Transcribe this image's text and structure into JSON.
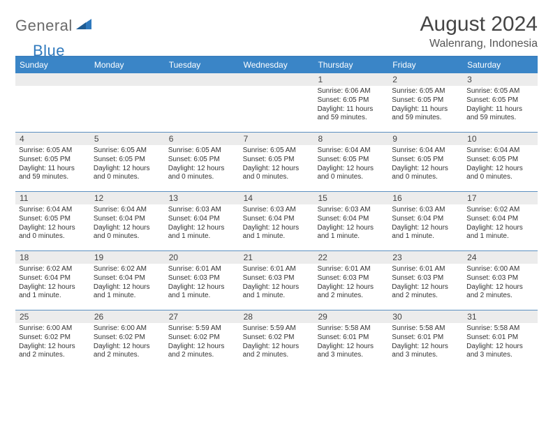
{
  "brand": {
    "part1": "General",
    "part2": "Blue"
  },
  "title": {
    "month": "August 2024",
    "location": "Walenrang, Indonesia"
  },
  "colors": {
    "header_bg": "#3a85c7",
    "header_border": "#3a7fbf",
    "week_divider": "#5b8fc0",
    "daynum_bg": "#ececec",
    "text": "#333333",
    "logo_gray": "#6a6a6a",
    "logo_blue": "#2f79bd",
    "background": "#ffffff"
  },
  "dayHeaders": [
    "Sunday",
    "Monday",
    "Tuesday",
    "Wednesday",
    "Thursday",
    "Friday",
    "Saturday"
  ],
  "weeks": [
    [
      {
        "n": "",
        "sr": "",
        "ss": "",
        "dl": ""
      },
      {
        "n": "",
        "sr": "",
        "ss": "",
        "dl": ""
      },
      {
        "n": "",
        "sr": "",
        "ss": "",
        "dl": ""
      },
      {
        "n": "",
        "sr": "",
        "ss": "",
        "dl": ""
      },
      {
        "n": "1",
        "sr": "Sunrise: 6:06 AM",
        "ss": "Sunset: 6:05 PM",
        "dl": "Daylight: 11 hours and 59 minutes."
      },
      {
        "n": "2",
        "sr": "Sunrise: 6:05 AM",
        "ss": "Sunset: 6:05 PM",
        "dl": "Daylight: 11 hours and 59 minutes."
      },
      {
        "n": "3",
        "sr": "Sunrise: 6:05 AM",
        "ss": "Sunset: 6:05 PM",
        "dl": "Daylight: 11 hours and 59 minutes."
      }
    ],
    [
      {
        "n": "4",
        "sr": "Sunrise: 6:05 AM",
        "ss": "Sunset: 6:05 PM",
        "dl": "Daylight: 11 hours and 59 minutes."
      },
      {
        "n": "5",
        "sr": "Sunrise: 6:05 AM",
        "ss": "Sunset: 6:05 PM",
        "dl": "Daylight: 12 hours and 0 minutes."
      },
      {
        "n": "6",
        "sr": "Sunrise: 6:05 AM",
        "ss": "Sunset: 6:05 PM",
        "dl": "Daylight: 12 hours and 0 minutes."
      },
      {
        "n": "7",
        "sr": "Sunrise: 6:05 AM",
        "ss": "Sunset: 6:05 PM",
        "dl": "Daylight: 12 hours and 0 minutes."
      },
      {
        "n": "8",
        "sr": "Sunrise: 6:04 AM",
        "ss": "Sunset: 6:05 PM",
        "dl": "Daylight: 12 hours and 0 minutes."
      },
      {
        "n": "9",
        "sr": "Sunrise: 6:04 AM",
        "ss": "Sunset: 6:05 PM",
        "dl": "Daylight: 12 hours and 0 minutes."
      },
      {
        "n": "10",
        "sr": "Sunrise: 6:04 AM",
        "ss": "Sunset: 6:05 PM",
        "dl": "Daylight: 12 hours and 0 minutes."
      }
    ],
    [
      {
        "n": "11",
        "sr": "Sunrise: 6:04 AM",
        "ss": "Sunset: 6:05 PM",
        "dl": "Daylight: 12 hours and 0 minutes."
      },
      {
        "n": "12",
        "sr": "Sunrise: 6:04 AM",
        "ss": "Sunset: 6:04 PM",
        "dl": "Daylight: 12 hours and 0 minutes."
      },
      {
        "n": "13",
        "sr": "Sunrise: 6:03 AM",
        "ss": "Sunset: 6:04 PM",
        "dl": "Daylight: 12 hours and 1 minute."
      },
      {
        "n": "14",
        "sr": "Sunrise: 6:03 AM",
        "ss": "Sunset: 6:04 PM",
        "dl": "Daylight: 12 hours and 1 minute."
      },
      {
        "n": "15",
        "sr": "Sunrise: 6:03 AM",
        "ss": "Sunset: 6:04 PM",
        "dl": "Daylight: 12 hours and 1 minute."
      },
      {
        "n": "16",
        "sr": "Sunrise: 6:03 AM",
        "ss": "Sunset: 6:04 PM",
        "dl": "Daylight: 12 hours and 1 minute."
      },
      {
        "n": "17",
        "sr": "Sunrise: 6:02 AM",
        "ss": "Sunset: 6:04 PM",
        "dl": "Daylight: 12 hours and 1 minute."
      }
    ],
    [
      {
        "n": "18",
        "sr": "Sunrise: 6:02 AM",
        "ss": "Sunset: 6:04 PM",
        "dl": "Daylight: 12 hours and 1 minute."
      },
      {
        "n": "19",
        "sr": "Sunrise: 6:02 AM",
        "ss": "Sunset: 6:04 PM",
        "dl": "Daylight: 12 hours and 1 minute."
      },
      {
        "n": "20",
        "sr": "Sunrise: 6:01 AM",
        "ss": "Sunset: 6:03 PM",
        "dl": "Daylight: 12 hours and 1 minute."
      },
      {
        "n": "21",
        "sr": "Sunrise: 6:01 AM",
        "ss": "Sunset: 6:03 PM",
        "dl": "Daylight: 12 hours and 1 minute."
      },
      {
        "n": "22",
        "sr": "Sunrise: 6:01 AM",
        "ss": "Sunset: 6:03 PM",
        "dl": "Daylight: 12 hours and 2 minutes."
      },
      {
        "n": "23",
        "sr": "Sunrise: 6:01 AM",
        "ss": "Sunset: 6:03 PM",
        "dl": "Daylight: 12 hours and 2 minutes."
      },
      {
        "n": "24",
        "sr": "Sunrise: 6:00 AM",
        "ss": "Sunset: 6:03 PM",
        "dl": "Daylight: 12 hours and 2 minutes."
      }
    ],
    [
      {
        "n": "25",
        "sr": "Sunrise: 6:00 AM",
        "ss": "Sunset: 6:02 PM",
        "dl": "Daylight: 12 hours and 2 minutes."
      },
      {
        "n": "26",
        "sr": "Sunrise: 6:00 AM",
        "ss": "Sunset: 6:02 PM",
        "dl": "Daylight: 12 hours and 2 minutes."
      },
      {
        "n": "27",
        "sr": "Sunrise: 5:59 AM",
        "ss": "Sunset: 6:02 PM",
        "dl": "Daylight: 12 hours and 2 minutes."
      },
      {
        "n": "28",
        "sr": "Sunrise: 5:59 AM",
        "ss": "Sunset: 6:02 PM",
        "dl": "Daylight: 12 hours and 2 minutes."
      },
      {
        "n": "29",
        "sr": "Sunrise: 5:58 AM",
        "ss": "Sunset: 6:01 PM",
        "dl": "Daylight: 12 hours and 3 minutes."
      },
      {
        "n": "30",
        "sr": "Sunrise: 5:58 AM",
        "ss": "Sunset: 6:01 PM",
        "dl": "Daylight: 12 hours and 3 minutes."
      },
      {
        "n": "31",
        "sr": "Sunrise: 5:58 AM",
        "ss": "Sunset: 6:01 PM",
        "dl": "Daylight: 12 hours and 3 minutes."
      }
    ]
  ]
}
